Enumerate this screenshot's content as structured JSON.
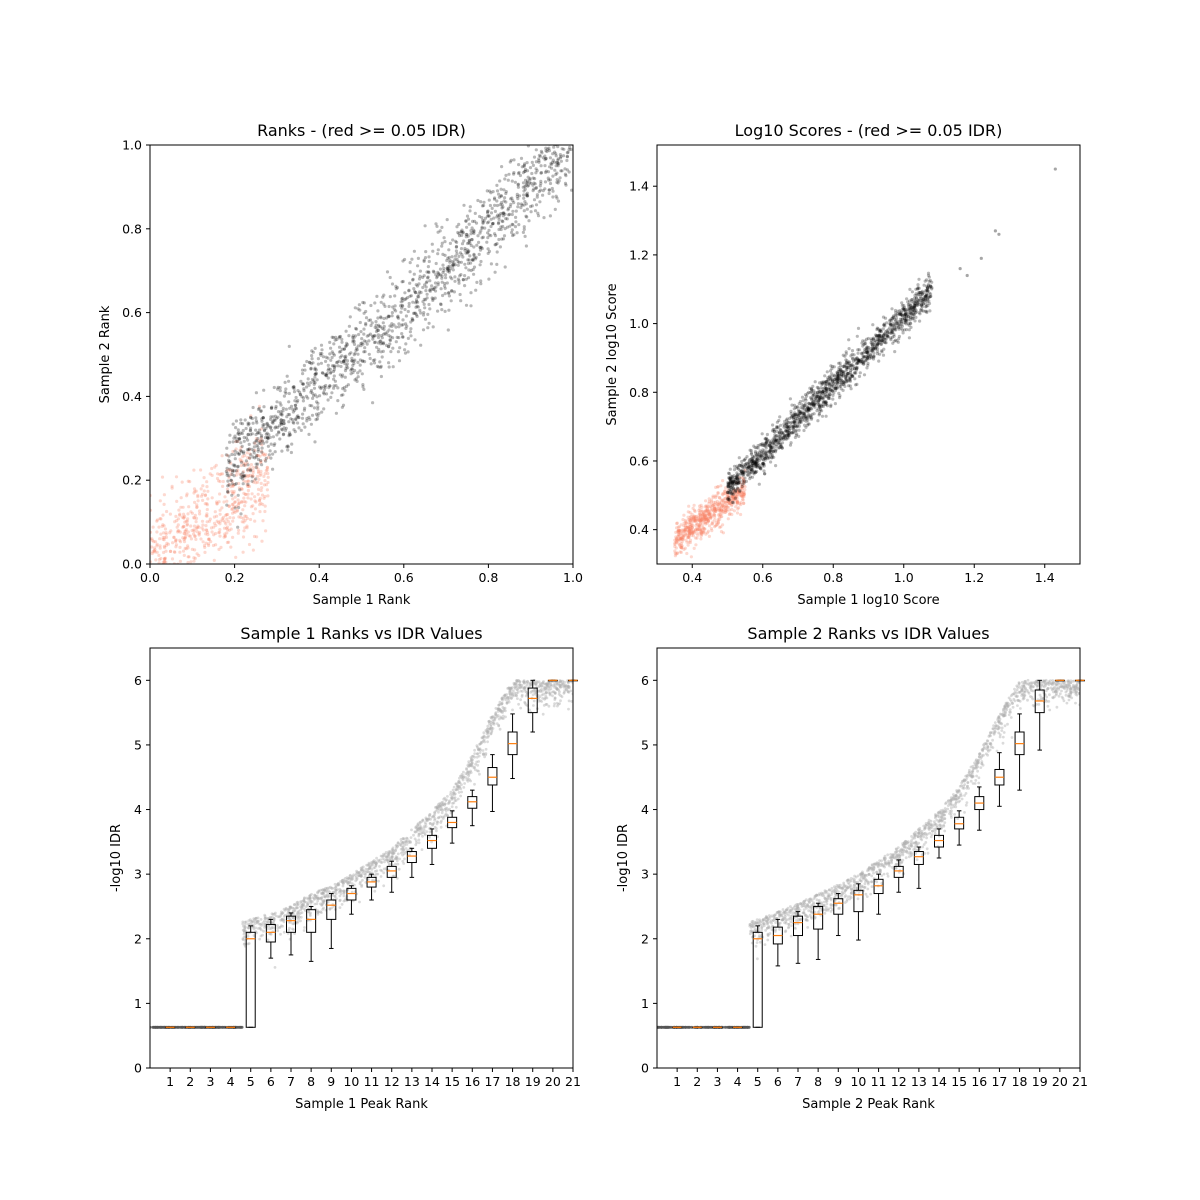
{
  "chart_data": [
    {
      "type": "scatter",
      "title": "Ranks - (red >= 0.05 IDR)",
      "xlabel": "Sample 1 Rank",
      "ylabel": "Sample 2 Rank",
      "xlim": [
        0.0,
        1.0
      ],
      "ylim": [
        0.0,
        1.0
      ],
      "xticks": [
        "0.0",
        "0.2",
        "0.4",
        "0.6",
        "0.8",
        "1.0"
      ],
      "yticks": [
        "0.0",
        "0.2",
        "0.4",
        "0.6",
        "0.8",
        "1.0"
      ],
      "grid": false,
      "colors": {
        "pass": "#000000",
        "fail": "#fa8064"
      },
      "series": [
        {
          "idr_class": "fail",
          "x_range": [
            0.0,
            0.28
          ],
          "trend": [
            [
              0.0,
              0.0
            ],
            [
              0.28,
              0.22
            ]
          ],
          "spread": 0.06
        },
        {
          "idr_class": "pass",
          "x_range": [
            0.18,
            1.0
          ],
          "trend": [
            [
              0.18,
              0.23
            ],
            [
              0.6,
              0.6
            ],
            [
              1.0,
              1.0
            ]
          ],
          "spread": 0.05
        }
      ]
    },
    {
      "type": "scatter",
      "title": "Log10 Scores - (red >= 0.05 IDR)",
      "xlabel": "Sample 1 log10 Score",
      "ylabel": "Sample 2 log10 Score",
      "xlim": [
        0.3,
        1.5
      ],
      "ylim": [
        0.3,
        1.52
      ],
      "xticks": [
        "0.4",
        "0.6",
        "0.8",
        "1.0",
        "1.2",
        "1.4"
      ],
      "yticks": [
        "0.4",
        "0.6",
        "0.8",
        "1.0",
        "1.2",
        "1.4"
      ],
      "grid": false,
      "colors": {
        "pass": "#000000",
        "fail": "#fa8064"
      },
      "series": [
        {
          "idr_class": "fail",
          "x_range": [
            0.35,
            0.55
          ],
          "trend": [
            [
              0.35,
              0.37
            ],
            [
              0.55,
              0.52
            ]
          ],
          "spread": 0.025
        },
        {
          "idr_class": "pass",
          "x_range": [
            0.5,
            1.08
          ],
          "trend": [
            [
              0.5,
              0.52
            ],
            [
              1.08,
              1.1
            ]
          ],
          "spread": 0.025
        }
      ],
      "outliers": [
        [
          1.43,
          1.45
        ],
        [
          1.26,
          1.27
        ],
        [
          1.27,
          1.26
        ],
        [
          1.22,
          1.19
        ],
        [
          1.16,
          1.16
        ],
        [
          1.18,
          1.14
        ]
      ]
    },
    {
      "type": "box",
      "title": "Sample 1 Ranks vs IDR Values",
      "xlabel": "Sample 1 Peak Rank",
      "ylabel": "-log10 IDR",
      "ylim": [
        0,
        6.5
      ],
      "xlim": [
        0,
        21
      ],
      "categories": [
        "1",
        "2",
        "3",
        "4",
        "5",
        "6",
        "7",
        "8",
        "9",
        "10",
        "11",
        "12",
        "13",
        "14",
        "15",
        "16",
        "17",
        "18",
        "19",
        "20",
        "21"
      ],
      "yticks": [
        "0",
        "1",
        "2",
        "3",
        "4",
        "5",
        "6"
      ],
      "colors": {
        "box": "#000000",
        "median": "#ff7f0e",
        "points": "#b0b0b0"
      },
      "boxes": [
        {
          "q1": 0.63,
          "median": 0.63,
          "q3": 0.63,
          "lo": 0.63,
          "hi": 0.63
        },
        {
          "q1": 0.63,
          "median": 0.63,
          "q3": 0.63,
          "lo": 0.63,
          "hi": 0.63
        },
        {
          "q1": 0.63,
          "median": 0.63,
          "q3": 0.63,
          "lo": 0.63,
          "hi": 0.63
        },
        {
          "q1": 0.63,
          "median": 0.63,
          "q3": 0.63,
          "lo": 0.63,
          "hi": 0.63
        },
        {
          "q1": 0.63,
          "median": 2.0,
          "q3": 2.1,
          "lo": 0.63,
          "hi": 2.2
        },
        {
          "q1": 1.95,
          "median": 2.1,
          "q3": 2.22,
          "lo": 1.7,
          "hi": 2.3
        },
        {
          "q1": 2.1,
          "median": 2.28,
          "q3": 2.35,
          "lo": 1.75,
          "hi": 2.4
        },
        {
          "q1": 2.1,
          "median": 2.3,
          "q3": 2.45,
          "lo": 1.65,
          "hi": 2.5
        },
        {
          "q1": 2.3,
          "median": 2.52,
          "q3": 2.6,
          "lo": 1.85,
          "hi": 2.7
        },
        {
          "q1": 2.6,
          "median": 2.7,
          "q3": 2.78,
          "lo": 2.38,
          "hi": 2.82
        },
        {
          "q1": 2.8,
          "median": 2.88,
          "q3": 2.95,
          "lo": 2.6,
          "hi": 3.0
        },
        {
          "q1": 2.95,
          "median": 3.05,
          "q3": 3.12,
          "lo": 2.72,
          "hi": 3.2
        },
        {
          "q1": 3.18,
          "median": 3.28,
          "q3": 3.35,
          "lo": 2.95,
          "hi": 3.4
        },
        {
          "q1": 3.4,
          "median": 3.52,
          "q3": 3.6,
          "lo": 3.15,
          "hi": 3.7
        },
        {
          "q1": 3.72,
          "median": 3.8,
          "q3": 3.88,
          "lo": 3.48,
          "hi": 3.98
        },
        {
          "q1": 4.02,
          "median": 4.12,
          "q3": 4.2,
          "lo": 3.75,
          "hi": 4.3
        },
        {
          "q1": 4.38,
          "median": 4.5,
          "q3": 4.65,
          "lo": 3.97,
          "hi": 4.85
        },
        {
          "q1": 4.85,
          "median": 5.02,
          "q3": 5.2,
          "lo": 4.48,
          "hi": 5.48
        },
        {
          "q1": 5.5,
          "median": 5.72,
          "q3": 5.88,
          "lo": 5.2,
          "hi": 6.0
        },
        {
          "q1": 6.0,
          "median": 6.0,
          "q3": 6.0,
          "lo": 6.0,
          "hi": 6.0
        },
        {
          "q1": 6.0,
          "median": 6.0,
          "q3": 6.0,
          "lo": 6.0,
          "hi": 6.0
        }
      ]
    },
    {
      "type": "box",
      "title": "Sample 2 Ranks vs IDR Values",
      "xlabel": "Sample 2 Peak Rank",
      "ylabel": "-log10 IDR",
      "ylim": [
        0,
        6.5
      ],
      "xlim": [
        0,
        21
      ],
      "categories": [
        "1",
        "2",
        "3",
        "4",
        "5",
        "6",
        "7",
        "8",
        "9",
        "10",
        "11",
        "12",
        "13",
        "14",
        "15",
        "16",
        "17",
        "18",
        "19",
        "20",
        "21"
      ],
      "yticks": [
        "0",
        "1",
        "2",
        "3",
        "4",
        "5",
        "6"
      ],
      "colors": {
        "box": "#000000",
        "median": "#ff7f0e",
        "points": "#b0b0b0"
      },
      "boxes": [
        {
          "q1": 0.63,
          "median": 0.63,
          "q3": 0.63,
          "lo": 0.63,
          "hi": 0.63
        },
        {
          "q1": 0.63,
          "median": 0.63,
          "q3": 0.63,
          "lo": 0.63,
          "hi": 0.63
        },
        {
          "q1": 0.63,
          "median": 0.63,
          "q3": 0.63,
          "lo": 0.63,
          "hi": 0.63
        },
        {
          "q1": 0.63,
          "median": 0.63,
          "q3": 0.63,
          "lo": 0.63,
          "hi": 0.63
        },
        {
          "q1": 0.63,
          "median": 2.0,
          "q3": 2.1,
          "lo": 0.63,
          "hi": 2.2
        },
        {
          "q1": 1.92,
          "median": 2.05,
          "q3": 2.18,
          "lo": 1.58,
          "hi": 2.3
        },
        {
          "q1": 2.05,
          "median": 2.25,
          "q3": 2.35,
          "lo": 1.62,
          "hi": 2.42
        },
        {
          "q1": 2.15,
          "median": 2.38,
          "q3": 2.5,
          "lo": 1.68,
          "hi": 2.55
        },
        {
          "q1": 2.38,
          "median": 2.55,
          "q3": 2.62,
          "lo": 2.05,
          "hi": 2.7
        },
        {
          "q1": 2.42,
          "median": 2.68,
          "q3": 2.75,
          "lo": 1.98,
          "hi": 2.85
        },
        {
          "q1": 2.7,
          "median": 2.82,
          "q3": 2.92,
          "lo": 2.38,
          "hi": 3.0
        },
        {
          "q1": 2.95,
          "median": 3.05,
          "q3": 3.12,
          "lo": 2.72,
          "hi": 3.22
        },
        {
          "q1": 3.15,
          "median": 3.27,
          "q3": 3.35,
          "lo": 2.78,
          "hi": 3.42
        },
        {
          "q1": 3.42,
          "median": 3.52,
          "q3": 3.6,
          "lo": 3.25,
          "hi": 3.7
        },
        {
          "q1": 3.7,
          "median": 3.78,
          "q3": 3.88,
          "lo": 3.45,
          "hi": 3.98
        },
        {
          "q1": 4.0,
          "median": 4.1,
          "q3": 4.2,
          "lo": 3.68,
          "hi": 4.35
        },
        {
          "q1": 4.38,
          "median": 4.5,
          "q3": 4.62,
          "lo": 4.05,
          "hi": 4.88
        },
        {
          "q1": 4.85,
          "median": 5.02,
          "q3": 5.2,
          "lo": 4.3,
          "hi": 5.48
        },
        {
          "q1": 5.5,
          "median": 5.68,
          "q3": 5.85,
          "lo": 4.92,
          "hi": 6.0
        },
        {
          "q1": 6.0,
          "median": 6.0,
          "q3": 6.0,
          "lo": 6.0,
          "hi": 6.0
        },
        {
          "q1": 6.0,
          "median": 6.0,
          "q3": 6.0,
          "lo": 6.0,
          "hi": 6.0
        }
      ]
    }
  ]
}
